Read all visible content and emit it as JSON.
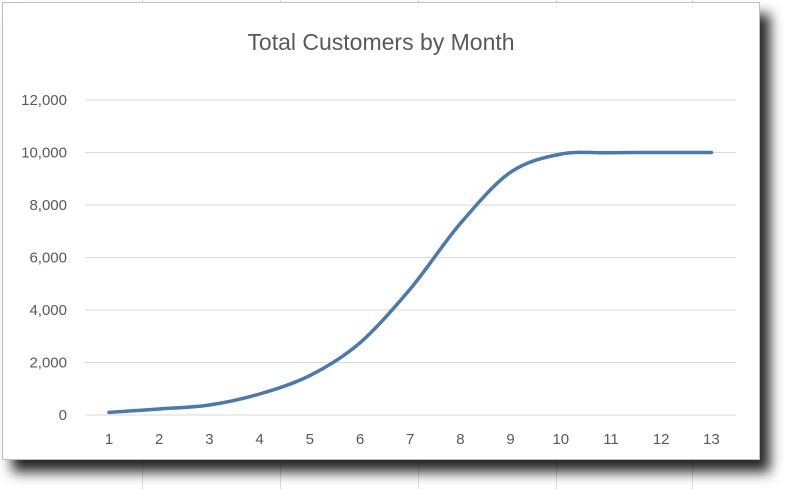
{
  "chart_data": {
    "type": "line",
    "title": "Total Customers by Month",
    "xlabel": "",
    "ylabel": "",
    "x": [
      "1",
      "2",
      "3",
      "4",
      "5",
      "6",
      "7",
      "8",
      "9",
      "10",
      "11",
      "12",
      "13"
    ],
    "series": [
      {
        "values": [
          100,
          230,
          380,
          800,
          1500,
          2750,
          4800,
          7300,
          9250,
          9940,
          9990,
          10000,
          10000
        ]
      }
    ],
    "ylim": [
      0,
      12000
    ],
    "yticks": [
      0,
      2000,
      4000,
      6000,
      8000,
      10000,
      12000
    ],
    "ytick_labels": [
      "0",
      "2,000",
      "4,000",
      "6,000",
      "8,000",
      "10,000",
      "12,000"
    ],
    "grid": "horizontal",
    "legend": "none",
    "colors": {
      "line": "#4a78b0",
      "grid": "#d9d9d9",
      "text": "#595959"
    }
  }
}
